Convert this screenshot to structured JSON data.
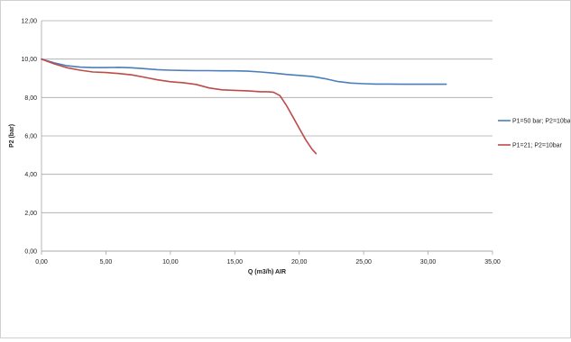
{
  "chart_data": {
    "type": "line",
    "title": "",
    "xlabel": "Q (m3/h) AIR",
    "ylabel": "P2 (bar)",
    "xlim": [
      0,
      35
    ],
    "ylim": [
      0,
      12
    ],
    "x_ticks": [
      "0,00",
      "5,00",
      "10,00",
      "15,00",
      "20,00",
      "25,00",
      "30,00",
      "35,00"
    ],
    "y_ticks": [
      "0,00",
      "2,00",
      "4,00",
      "6,00",
      "8,00",
      "10,00",
      "12,00"
    ],
    "grid": "horizontal",
    "legend_position": "right",
    "series": [
      {
        "name": "P1=50 bar; P2=10ba",
        "color": "#4a7ebb",
        "x": [
          0,
          1,
          2,
          3,
          4,
          5,
          6,
          7,
          8,
          9,
          10,
          11,
          12,
          13,
          14,
          15,
          16,
          17,
          18,
          19,
          20,
          21,
          22,
          23,
          24,
          25,
          26,
          27,
          28,
          29,
          30,
          31,
          31.4
        ],
        "y": [
          10.0,
          9.8,
          9.65,
          9.58,
          9.56,
          9.56,
          9.57,
          9.55,
          9.5,
          9.45,
          9.42,
          9.41,
          9.4,
          9.4,
          9.39,
          9.39,
          9.37,
          9.33,
          9.27,
          9.2,
          9.15,
          9.1,
          8.98,
          8.83,
          8.75,
          8.72,
          8.7,
          8.7,
          8.69,
          8.69,
          8.69,
          8.69,
          8.69
        ]
      },
      {
        "name": "P1=21; P2=10bar",
        "color": "#be4b48",
        "x": [
          0,
          1,
          2,
          3,
          4,
          5,
          6,
          7,
          8,
          9,
          10,
          11,
          12,
          13,
          14,
          15,
          16,
          17,
          17.5,
          18,
          18.5,
          19,
          19.5,
          20,
          20.5,
          21,
          21.3
        ],
        "y": [
          10.0,
          9.75,
          9.55,
          9.42,
          9.33,
          9.3,
          9.25,
          9.18,
          9.05,
          8.92,
          8.82,
          8.77,
          8.68,
          8.5,
          8.4,
          8.37,
          8.35,
          8.3,
          8.3,
          8.28,
          8.1,
          7.6,
          7.0,
          6.4,
          5.8,
          5.3,
          5.08
        ]
      }
    ]
  }
}
